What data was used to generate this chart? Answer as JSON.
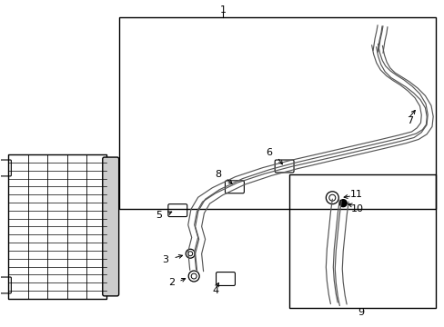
{
  "bg_color": "#ffffff",
  "line_color": "#000000",
  "gray": "#666666",
  "light_gray": "#aaaaaa"
}
